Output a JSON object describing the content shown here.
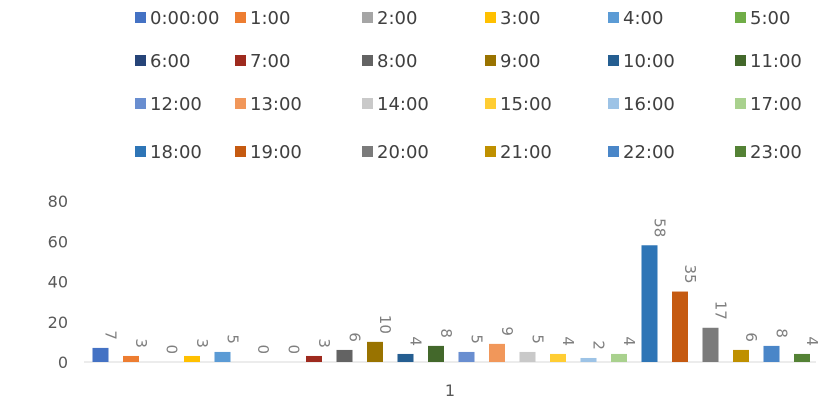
{
  "chart_data": {
    "type": "bar",
    "categories": [
      "1"
    ],
    "series": [
      {
        "name": "0:00:00",
        "values": [
          7
        ],
        "color": "#4472c4"
      },
      {
        "name": "1:00",
        "values": [
          3
        ],
        "color": "#ed7d31"
      },
      {
        "name": "2:00",
        "values": [
          0
        ],
        "color": "#a5a5a5"
      },
      {
        "name": "3:00",
        "values": [
          3
        ],
        "color": "#ffc000"
      },
      {
        "name": "4:00",
        "values": [
          5
        ],
        "color": "#5b9bd5"
      },
      {
        "name": "5:00",
        "values": [
          0
        ],
        "color": "#70ad47"
      },
      {
        "name": "6:00",
        "values": [
          0
        ],
        "color": "#264478"
      },
      {
        "name": "7:00",
        "values": [
          3
        ],
        "color": "#9e2a1e"
      },
      {
        "name": "8:00",
        "values": [
          6
        ],
        "color": "#636363"
      },
      {
        "name": "9:00",
        "values": [
          10
        ],
        "color": "#997300"
      },
      {
        "name": "10:00",
        "values": [
          4
        ],
        "color": "#255e91"
      },
      {
        "name": "11:00",
        "values": [
          8
        ],
        "color": "#43682b"
      },
      {
        "name": "12:00",
        "values": [
          5
        ],
        "color": "#698ed0"
      },
      {
        "name": "13:00",
        "values": [
          9
        ],
        "color": "#f1975a"
      },
      {
        "name": "14:00",
        "values": [
          5
        ],
        "color": "#c9c9c9"
      },
      {
        "name": "15:00",
        "values": [
          4
        ],
        "color": "#ffcd33"
      },
      {
        "name": "16:00",
        "values": [
          2
        ],
        "color": "#9dc3e6"
      },
      {
        "name": "17:00",
        "values": [
          4
        ],
        "color": "#a9d18e"
      },
      {
        "name": "18:00",
        "values": [
          58
        ],
        "color": "#2e75b6"
      },
      {
        "name": "19:00",
        "values": [
          35
        ],
        "color": "#c55a11"
      },
      {
        "name": "20:00",
        "values": [
          17
        ],
        "color": "#7b7b7b"
      },
      {
        "name": "21:00",
        "values": [
          6
        ],
        "color": "#bf9000"
      },
      {
        "name": "22:00",
        "values": [
          8
        ],
        "color": "#4a86c8"
      },
      {
        "name": "23:00",
        "values": [
          4
        ],
        "color": "#548235"
      }
    ],
    "ylim": [
      0,
      80
    ],
    "yticks": [
      0,
      20,
      40,
      60,
      80
    ],
    "grid": false,
    "legend_position": "top",
    "data_labels": true,
    "data_label_rotation": "vertical"
  }
}
